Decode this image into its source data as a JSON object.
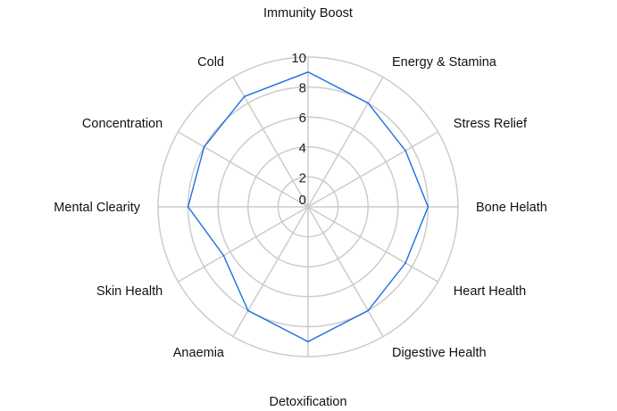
{
  "chart_data": {
    "type": "radar",
    "title": "",
    "categories": [
      "Immunity Boost",
      "Energy & Stamina",
      "Stress Relief",
      "Bone Helath",
      "Heart Health",
      "Digestive Health",
      "Detoxification",
      "Anaemia",
      "Skin Health",
      "Mental Clearity",
      "Concentration",
      "Cold"
    ],
    "series": [
      {
        "values": [
          9,
          8,
          7.5,
          8,
          7.5,
          8,
          9,
          8,
          6.5,
          8,
          8,
          8.5
        ]
      }
    ],
    "rlim": [
      0,
      10
    ],
    "ticks": [
      0,
      2,
      4,
      6,
      8,
      10
    ],
    "grid": true,
    "legend": "none"
  },
  "colors": {
    "series_line": "#1a6fe0",
    "grid": "#cccccc"
  }
}
